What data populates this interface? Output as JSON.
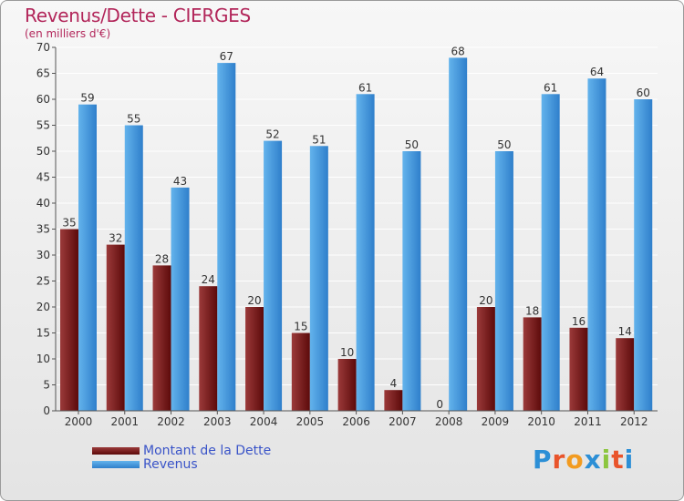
{
  "title": "Revenus/Dette - CIERGES",
  "subtitle": "(en milliers d'€)",
  "colors": {
    "debt_light": "#9b3a3a",
    "debt_dark": "#5c0a0a",
    "revenue_light": "#63b3ec",
    "revenue_dark": "#2f7fcb",
    "title": "#b2265a",
    "legend_text": "#3a54c8"
  },
  "legend": {
    "debt_label": "Montant de la Dette",
    "revenue_label": "Revenus"
  },
  "logo": {
    "text": "Proxiti",
    "letter_colors": [
      "#2c8fd6",
      "#e9542b",
      "#f29b20",
      "#2c8fd6",
      "#8cc63f",
      "#e9542b",
      "#2c8fd6"
    ]
  },
  "chart_data": {
    "type": "bar",
    "title": "Revenus/Dette - CIERGES",
    "ylabel": "(en milliers d'€)",
    "xlabel": "",
    "categories": [
      "2000",
      "2001",
      "2002",
      "2003",
      "2004",
      "2005",
      "2006",
      "2007",
      "2008",
      "2009",
      "2010",
      "2011",
      "2012"
    ],
    "series": [
      {
        "name": "Montant de la Dette",
        "values": [
          35,
          32,
          28,
          24,
          20,
          15,
          10,
          4,
          0,
          20,
          18,
          16,
          14
        ]
      },
      {
        "name": "Revenus",
        "values": [
          59,
          55,
          43,
          67,
          52,
          51,
          61,
          50,
          68,
          50,
          61,
          64,
          60
        ]
      }
    ],
    "ylim": [
      0,
      70
    ],
    "yticks": [
      0,
      5,
      10,
      15,
      20,
      25,
      30,
      35,
      40,
      45,
      50,
      55,
      60,
      65,
      70
    ],
    "grid": true,
    "legend_position": "bottom-left"
  }
}
